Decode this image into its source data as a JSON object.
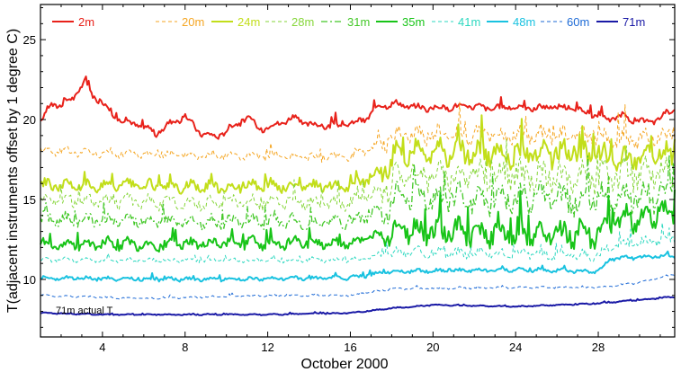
{
  "chart_data": {
    "type": "line",
    "title": "",
    "xlabel": "October 2000",
    "ylabel": "T(adjacent instruments offset by 1 degree C)",
    "xlim": [
      1,
      31.7
    ],
    "ylim": [
      6.4,
      27.2
    ],
    "x_ticks": [
      4,
      8,
      12,
      16,
      20,
      24,
      28
    ],
    "y_ticks": [
      10,
      15,
      20,
      25
    ],
    "grid": false,
    "legend_position": "top",
    "annotation": "71m actual T",
    "series": [
      {
        "name": "2m",
        "color": "#e8211a",
        "style": "solid",
        "width": 2.0,
        "base": 20.5,
        "amp": 0.35,
        "points": [
          [
            1,
            19.8
          ],
          [
            1.5,
            21.0
          ],
          [
            2,
            20.9
          ],
          [
            2.6,
            21.4
          ],
          [
            3.2,
            22.4
          ],
          [
            3.5,
            21.5
          ],
          [
            4,
            21.1
          ],
          [
            4.6,
            20.2
          ],
          [
            5.3,
            19.8
          ],
          [
            6,
            19.6
          ],
          [
            6.6,
            19.1
          ],
          [
            7.2,
            19.7
          ],
          [
            8,
            20.2
          ],
          [
            8.7,
            19.2
          ],
          [
            9.5,
            18.9
          ],
          [
            10.2,
            19.5
          ],
          [
            11,
            20.1
          ],
          [
            11.6,
            19.4
          ],
          [
            12.4,
            19.7
          ],
          [
            13.2,
            20.1
          ],
          [
            14,
            19.7
          ],
          [
            15,
            19.6
          ],
          [
            16,
            19.7
          ],
          [
            16.8,
            20.1
          ],
          [
            17.4,
            20.9
          ],
          [
            18.2,
            21.0
          ],
          [
            19,
            20.8
          ],
          [
            20,
            20.7
          ],
          [
            21,
            20.8
          ],
          [
            22,
            20.8
          ],
          [
            23,
            20.7
          ],
          [
            24,
            20.8
          ],
          [
            25,
            20.7
          ],
          [
            26,
            20.8
          ],
          [
            27,
            20.6
          ],
          [
            27.8,
            20.3
          ],
          [
            28.4,
            19.9
          ],
          [
            29,
            20.3
          ],
          [
            29.6,
            20.0
          ],
          [
            30.4,
            19.8
          ],
          [
            31,
            20.1
          ],
          [
            31.6,
            20.6
          ]
        ]
      },
      {
        "name": "20m",
        "color": "#f5a623",
        "style": "dashed",
        "width": 1.0,
        "base": 18.0,
        "amp": 0.45,
        "points": [
          [
            1,
            18.1
          ],
          [
            4,
            17.9
          ],
          [
            8,
            17.8
          ],
          [
            12,
            17.7
          ],
          [
            16,
            17.6
          ],
          [
            17.6,
            18.6
          ],
          [
            18.5,
            19.1
          ],
          [
            20,
            19.1
          ],
          [
            24,
            19.0
          ],
          [
            28,
            19.0
          ],
          [
            28.8,
            18.7
          ],
          [
            31.6,
            18.9
          ]
        ]
      },
      {
        "name": "24m",
        "color": "#c2de1a",
        "style": "solid",
        "width": 2.0,
        "base": 16.0,
        "amp": 0.6,
        "points": [
          [
            1,
            15.9
          ],
          [
            4,
            15.9
          ],
          [
            8,
            15.8
          ],
          [
            12,
            15.8
          ],
          [
            16,
            15.8
          ],
          [
            17.6,
            16.8
          ],
          [
            18.2,
            18.0
          ],
          [
            20,
            18.0
          ],
          [
            24,
            17.9
          ],
          [
            28,
            17.8
          ],
          [
            28.8,
            17.4
          ],
          [
            31.6,
            17.9
          ]
        ]
      },
      {
        "name": "28m",
        "color": "#86d63a",
        "style": "dashed",
        "width": 1.0,
        "base": 15.0,
        "amp": 0.7,
        "points": [
          [
            1,
            15.0
          ],
          [
            4,
            14.9
          ],
          [
            8,
            14.8
          ],
          [
            12,
            14.8
          ],
          [
            16,
            14.8
          ],
          [
            17.6,
            15.6
          ],
          [
            18.4,
            16.6
          ],
          [
            24,
            16.5
          ],
          [
            28,
            16.4
          ],
          [
            31.6,
            16.7
          ]
        ]
      },
      {
        "name": "31m",
        "color": "#43c828",
        "style": "dashdot",
        "width": 1.3,
        "base": 13.5,
        "amp": 0.7,
        "points": [
          [
            1,
            13.8
          ],
          [
            4,
            13.7
          ],
          [
            8,
            13.6
          ],
          [
            12,
            13.6
          ],
          [
            16,
            13.6
          ],
          [
            17.6,
            14.4
          ],
          [
            18.4,
            15.2
          ],
          [
            24,
            15.1
          ],
          [
            28,
            15.0
          ],
          [
            31.6,
            15.4
          ]
        ]
      },
      {
        "name": "35m",
        "color": "#18c418",
        "style": "solid",
        "width": 2.0,
        "base": 12.3,
        "amp": 0.6,
        "points": [
          [
            1,
            12.2
          ],
          [
            4,
            12.2
          ],
          [
            8,
            12.2
          ],
          [
            12,
            12.3
          ],
          [
            16,
            12.3
          ],
          [
            17.6,
            12.8
          ],
          [
            18.4,
            13.1
          ],
          [
            24,
            12.9
          ],
          [
            28,
            12.8
          ],
          [
            28.6,
            13.6
          ],
          [
            31.6,
            14.4
          ]
        ]
      },
      {
        "name": "41m",
        "color": "#2ed8c0",
        "style": "dashed",
        "width": 1.0,
        "base": 11.2,
        "amp": 0.25,
        "points": [
          [
            1,
            11.2
          ],
          [
            8,
            11.2
          ],
          [
            16,
            11.2
          ],
          [
            18.4,
            11.7
          ],
          [
            24,
            11.6
          ],
          [
            28,
            11.5
          ],
          [
            28.6,
            12.1
          ],
          [
            31.6,
            12.6
          ]
        ]
      },
      {
        "name": "48m",
        "color": "#19c2e0",
        "style": "solid",
        "width": 2.0,
        "base": 10.1,
        "amp": 0.2,
        "points": [
          [
            1,
            10.1
          ],
          [
            8,
            10.0
          ],
          [
            16,
            10.1
          ],
          [
            18,
            10.5
          ],
          [
            24,
            10.6
          ],
          [
            28,
            10.5
          ],
          [
            28.6,
            11.3
          ],
          [
            31.6,
            11.5
          ]
        ]
      },
      {
        "name": "60m",
        "color": "#1d6ad6",
        "style": "dashed",
        "width": 1.0,
        "base": 9.0,
        "amp": 0.1,
        "points": [
          [
            1,
            9.0
          ],
          [
            6,
            8.8
          ],
          [
            12,
            9.0
          ],
          [
            16,
            9.0
          ],
          [
            18,
            9.4
          ],
          [
            24,
            9.5
          ],
          [
            28,
            9.5
          ],
          [
            30,
            9.8
          ],
          [
            31.6,
            10.3
          ]
        ]
      },
      {
        "name": "71m",
        "color": "#1a1aa6",
        "style": "solid",
        "width": 2.0,
        "base": 7.9,
        "amp": 0.06,
        "points": [
          [
            1,
            7.9
          ],
          [
            4,
            7.8
          ],
          [
            8,
            7.8
          ],
          [
            12,
            7.8
          ],
          [
            16,
            7.9
          ],
          [
            18,
            8.2
          ],
          [
            20,
            8.4
          ],
          [
            24,
            8.3
          ],
          [
            28,
            8.5
          ],
          [
            31.6,
            8.9
          ]
        ]
      }
    ]
  }
}
